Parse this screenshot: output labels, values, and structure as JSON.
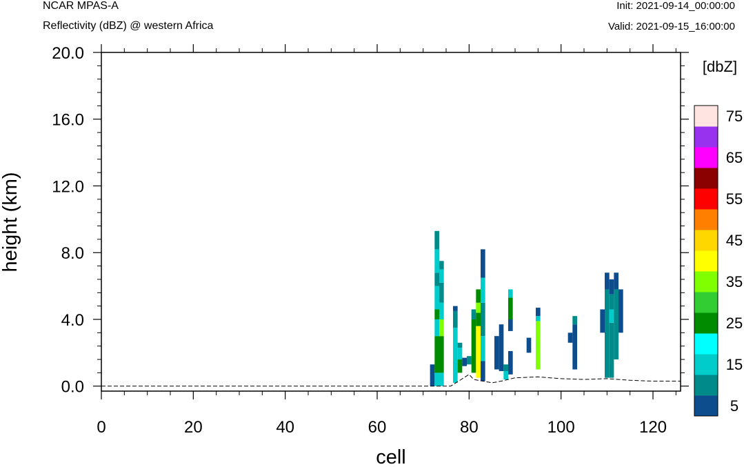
{
  "header": {
    "title": "NCAR MPAS-A",
    "subtitle": "Reflectivity (dBZ) @ western Africa",
    "init": "Init: 2021-09-14_00:00:00",
    "valid": "Valid: 2021-09-15_16:00:00"
  },
  "chart_data": {
    "type": "heatmap",
    "xlabel": "cell",
    "ylabel": "height (km)",
    "xlim": [
      0,
      126
    ],
    "ylim": [
      -0.3,
      20.0
    ],
    "x_ticks": [
      "0",
      "20",
      "40",
      "60",
      "80",
      "100",
      "120"
    ],
    "y_ticks": [
      "0.0",
      "4.0",
      "8.0",
      "12.0",
      "16.0",
      "20.0"
    ],
    "colorbar": {
      "label": "[dbZ]",
      "levels": [
        5,
        10,
        15,
        20,
        25,
        30,
        35,
        40,
        45,
        50,
        55,
        60,
        65,
        70,
        75
      ],
      "tick_labels": [
        "5",
        "15",
        "25",
        "35",
        "45",
        "55",
        "65",
        "75"
      ],
      "colors": [
        "#0d4d8e",
        "#008b8b",
        "#00cccc",
        "#00ffff",
        "#008b00",
        "#32cd32",
        "#7fff00",
        "#ffff00",
        "#ffd700",
        "#ff8000",
        "#ff0000",
        "#8b0000",
        "#ff00ff",
        "#9932ee",
        "#ffe4e1"
      ]
    },
    "columns": [
      {
        "x": 72,
        "bins": [
          [
            0.0,
            1.3,
            5
          ]
        ]
      },
      {
        "x": 73,
        "bins": [
          [
            0.0,
            0.8,
            15
          ],
          [
            0.8,
            3.0,
            25
          ],
          [
            3.0,
            4.0,
            15
          ],
          [
            4.0,
            4.6,
            25
          ],
          [
            4.6,
            6.0,
            15
          ],
          [
            6.0,
            6.8,
            10
          ],
          [
            6.8,
            8.2,
            15
          ],
          [
            8.2,
            9.3,
            10
          ]
        ]
      },
      {
        "x": 74,
        "bins": [
          [
            0.0,
            0.8,
            15
          ],
          [
            0.8,
            3.0,
            25
          ],
          [
            3.0,
            4.0,
            35
          ],
          [
            4.0,
            5.0,
            15
          ],
          [
            5.0,
            6.2,
            10
          ],
          [
            6.2,
            7.0,
            15
          ],
          [
            7.0,
            7.5,
            10
          ]
        ]
      },
      {
        "x": 77,
        "bins": [
          [
            0.2,
            3.5,
            15
          ],
          [
            3.5,
            4.5,
            10
          ],
          [
            4.5,
            4.8,
            5
          ]
        ]
      },
      {
        "x": 78,
        "bins": [
          [
            0.8,
            1.6,
            25
          ],
          [
            1.6,
            2.3,
            15
          ],
          [
            2.3,
            2.6,
            10
          ]
        ]
      },
      {
        "x": 79,
        "bins": [
          [
            1.2,
            1.7,
            5
          ]
        ]
      },
      {
        "x": 80,
        "bins": [
          [
            1.3,
            1.8,
            10
          ]
        ]
      },
      {
        "x": 81,
        "bins": [
          [
            0.8,
            4.0,
            25
          ],
          [
            4.0,
            4.6,
            10
          ]
        ]
      },
      {
        "x": 82,
        "bins": [
          [
            0.5,
            3.6,
            40
          ],
          [
            3.6,
            4.4,
            25
          ],
          [
            4.4,
            5.0,
            35
          ],
          [
            5.0,
            5.8,
            25
          ]
        ]
      },
      {
        "x": 83,
        "bins": [
          [
            0.3,
            1.5,
            5
          ],
          [
            1.5,
            3.0,
            15
          ],
          [
            3.0,
            5.0,
            10
          ],
          [
            5.0,
            6.5,
            15
          ],
          [
            6.5,
            8.2,
            5
          ]
        ]
      },
      {
        "x": 86,
        "bins": [
          [
            1.0,
            3.0,
            5
          ]
        ]
      },
      {
        "x": 87,
        "bins": [
          [
            0.9,
            3.7,
            5
          ]
        ]
      },
      {
        "x": 88,
        "bins": [
          [
            0.4,
            0.9,
            15
          ],
          [
            0.9,
            1.3,
            10
          ]
        ]
      },
      {
        "x": 89,
        "bins": [
          [
            0.7,
            2.1,
            5
          ],
          [
            3.3,
            4.0,
            5
          ],
          [
            4.0,
            5.3,
            25
          ],
          [
            5.3,
            5.8,
            15
          ]
        ]
      },
      {
        "x": 93,
        "bins": [
          [
            2.0,
            2.9,
            5
          ]
        ]
      },
      {
        "x": 95,
        "bins": [
          [
            1.0,
            3.9,
            35
          ],
          [
            3.9,
            4.2,
            15
          ],
          [
            4.2,
            4.7,
            5
          ]
        ]
      },
      {
        "x": 102,
        "bins": [
          [
            2.6,
            3.2,
            5
          ]
        ]
      },
      {
        "x": 103,
        "bins": [
          [
            1.0,
            3.7,
            5
          ],
          [
            3.7,
            4.2,
            10
          ]
        ]
      },
      {
        "x": 109,
        "bins": [
          [
            3.2,
            4.6,
            5
          ]
        ]
      },
      {
        "x": 110,
        "bins": [
          [
            0.5,
            5.8,
            10
          ],
          [
            5.8,
            6.8,
            5
          ]
        ]
      },
      {
        "x": 111,
        "bins": [
          [
            0.5,
            3.8,
            10
          ],
          [
            3.8,
            4.6,
            15
          ],
          [
            4.6,
            5.5,
            10
          ],
          [
            5.5,
            6.4,
            5
          ]
        ]
      },
      {
        "x": 112,
        "bins": [
          [
            1.6,
            5.8,
            10
          ],
          [
            5.8,
            6.8,
            5
          ]
        ]
      },
      {
        "x": 113,
        "bins": [
          [
            3.2,
            5.8,
            5
          ]
        ]
      }
    ],
    "terrain": [
      [
        0,
        0.0
      ],
      [
        70,
        0.0
      ],
      [
        76,
        0.0
      ],
      [
        80,
        0.7
      ],
      [
        81,
        0.4
      ],
      [
        83,
        0.3
      ],
      [
        85,
        0.2
      ],
      [
        87,
        0.3
      ],
      [
        90,
        0.5
      ],
      [
        95,
        0.55
      ],
      [
        100,
        0.45
      ],
      [
        105,
        0.4
      ],
      [
        110,
        0.45
      ],
      [
        115,
        0.35
      ],
      [
        120,
        0.3
      ],
      [
        126,
        0.3
      ]
    ]
  }
}
